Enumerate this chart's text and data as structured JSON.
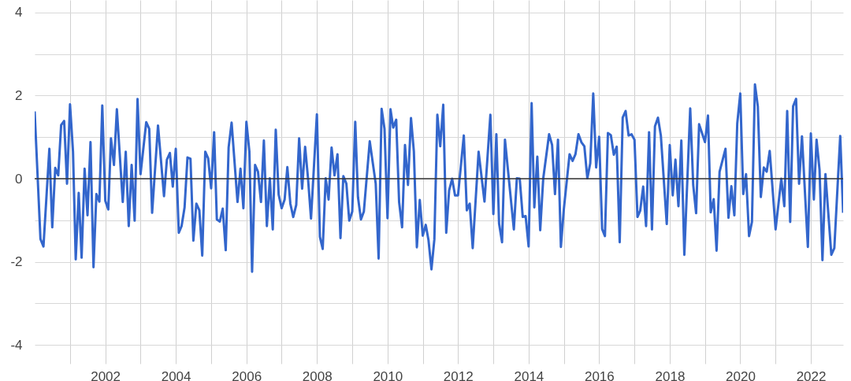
{
  "chart_data": {
    "type": "line",
    "x": [
      "2000-01",
      "2000-03",
      "2000-04",
      "2000-06",
      "2000-07",
      "2000-08",
      "2000-09",
      "2000-10",
      "2000-11",
      "2000-12",
      "2001-01",
      "2001-02",
      "2001-03",
      "2001-04",
      "2001-05",
      "2001-06",
      "2001-07",
      "2001-08",
      "2001-09",
      "2001-10",
      "2001-11",
      "2001-12",
      "2002-01",
      "2002-02",
      "2002-03",
      "2002-04",
      "2002-05",
      "2002-07",
      "2002-08",
      "2002-09",
      "2002-10",
      "2002-11",
      "2002-12",
      "2003-01",
      "2003-03",
      "2003-04",
      "2003-05",
      "2003-07",
      "2003-09",
      "2003-10",
      "2003-11",
      "2003-12",
      "2004-01",
      "2004-02",
      "2004-03",
      "2004-04",
      "2004-05",
      "2004-06",
      "2004-07",
      "2004-08",
      "2004-09",
      "2004-10",
      "2004-11",
      "2004-12",
      "2005-01",
      "2005-02",
      "2005-03",
      "2005-04",
      "2005-05",
      "2005-06",
      "2005-07",
      "2005-08",
      "2005-10",
      "2005-11",
      "2005-12",
      "2006-01",
      "2006-02",
      "2006-03",
      "2006-04",
      "2006-05",
      "2006-06",
      "2006-07",
      "2006-08",
      "2006-09",
      "2006-10",
      "2006-11",
      "2006-12",
      "2007-01",
      "2007-02",
      "2007-03",
      "2007-04",
      "2007-05",
      "2007-06",
      "2007-07",
      "2007-08",
      "2007-09",
      "2007-10",
      "2007-11",
      "2008-01",
      "2008-02",
      "2008-03",
      "2008-04",
      "2008-05",
      "2008-06",
      "2008-07",
      "2008-08",
      "2008-09",
      "2008-10",
      "2008-11",
      "2008-12",
      "2009-01",
      "2009-02",
      "2009-03",
      "2009-04",
      "2009-05",
      "2009-07",
      "2009-09",
      "2009-10",
      "2009-11",
      "2009-12",
      "2010-01",
      "2010-02",
      "2010-03",
      "2010-04",
      "2010-05",
      "2010-06",
      "2010-07",
      "2010-08",
      "2010-09",
      "2010-10",
      "2010-11",
      "2010-12",
      "2011-01",
      "2011-02",
      "2011-03",
      "2011-04",
      "2011-05",
      "2011-06",
      "2011-07",
      "2011-08",
      "2011-09",
      "2011-10",
      "2011-11",
      "2011-12",
      "2012-01",
      "2012-03",
      "2012-04",
      "2012-05",
      "2012-06",
      "2012-08",
      "2012-10",
      "2012-12",
      "2013-01",
      "2013-02",
      "2013-03",
      "2013-04",
      "2013-05",
      "2013-08",
      "2013-09",
      "2013-10",
      "2013-11",
      "2013-12",
      "2014-01",
      "2014-02",
      "2014-03",
      "2014-04",
      "2014-05",
      "2014-06",
      "2014-08",
      "2014-09",
      "2014-10",
      "2014-11",
      "2014-12",
      "2015-01",
      "2015-03",
      "2015-04",
      "2015-05",
      "2015-06",
      "2015-07",
      "2015-08",
      "2015-09",
      "2015-10",
      "2015-11",
      "2015-12",
      "2016-01",
      "2016-02",
      "2016-03",
      "2016-04",
      "2016-05",
      "2016-06",
      "2016-07",
      "2016-08",
      "2016-09",
      "2016-10",
      "2016-11",
      "2016-12",
      "2017-01",
      "2017-02",
      "2017-03",
      "2017-04",
      "2017-05",
      "2017-06",
      "2017-07",
      "2017-08",
      "2017-09",
      "2017-10",
      "2017-12",
      "2018-01",
      "2018-02",
      "2018-03",
      "2018-04",
      "2018-05",
      "2018-06",
      "2018-08",
      "2018-09",
      "2018-10",
      "2018-11",
      "2019-01",
      "2019-02",
      "2019-03",
      "2019-04",
      "2019-05",
      "2019-06",
      "2019-08",
      "2019-09",
      "2019-10",
      "2019-11",
      "2019-12",
      "2020-01",
      "2020-02",
      "2020-03",
      "2020-04",
      "2020-05",
      "2020-06",
      "2020-07",
      "2020-08",
      "2020-09",
      "2020-10",
      "2020-11",
      "2021-01",
      "2021-03",
      "2021-04",
      "2021-05",
      "2021-06",
      "2021-07",
      "2021-08",
      "2021-09",
      "2021-10",
      "2021-12",
      "2022-01",
      "2022-02",
      "2022-03",
      "2022-04",
      "2022-05",
      "2022-06",
      "2022-08",
      "2022-09",
      "2022-11",
      "2022-12"
    ],
    "series": [
      {
        "color": "#3366cc",
        "values": [
          1.62,
          -1.45,
          -1.63,
          0.72,
          -1.17,
          0.26,
          0.08,
          1.29,
          1.39,
          -0.12,
          1.79,
          0.65,
          -1.94,
          -0.34,
          -1.9,
          0.24,
          -0.88,
          0.88,
          -2.13,
          -0.37,
          -0.55,
          1.76,
          -0.53,
          -0.74,
          0.97,
          0.33,
          1.67,
          -0.56,
          0.65,
          -1.14,
          0.33,
          -1.01,
          1.92,
          0.11,
          1.36,
          1.2,
          -0.82,
          1.28,
          -0.42,
          0.46,
          0.62,
          -0.19,
          0.72,
          -1.3,
          -1.14,
          -0.69,
          0.51,
          0.48,
          -1.49,
          -0.6,
          -0.76,
          -1.85,
          0.65,
          0.49,
          -0.23,
          1.12,
          -0.98,
          -1.03,
          -0.72,
          -1.72,
          0.75,
          1.35,
          -0.56,
          0.24,
          -0.71,
          1.37,
          0.65,
          -2.24,
          0.33,
          0.17,
          -0.56,
          0.92,
          -1.14,
          0.01,
          -1.22,
          1.18,
          -0.38,
          -0.71,
          -0.5,
          0.28,
          -0.6,
          -0.92,
          -0.63,
          0.97,
          -0.24,
          0.77,
          0.01,
          -0.96,
          1.55,
          -1.4,
          -1.69,
          0.01,
          -0.5,
          0.75,
          0.08,
          0.59,
          -1.43,
          0.06,
          -0.12,
          -1.01,
          -0.79,
          1.37,
          -0.44,
          -0.98,
          -0.79,
          0.9,
          -0.12,
          -1.92,
          1.68,
          1.2,
          -0.95,
          1.67,
          1.23,
          1.42,
          -0.56,
          -1.17,
          0.81,
          -0.15,
          1.46,
          0.65,
          -1.65,
          -0.51,
          -1.37,
          -1.11,
          -1.47,
          -2.18,
          -1.46,
          1.54,
          0.78,
          1.78,
          -1.3,
          -0.28,
          0,
          -0.4,
          -0.4,
          1.04,
          -0.76,
          -0.6,
          -1.67,
          0.65,
          -0.55,
          1.54,
          -0.85,
          1.07,
          -1.08,
          -1.53,
          0.94,
          -1.22,
          0.01,
          0,
          -0.92,
          -0.9,
          -1.63,
          1.82,
          -0.69,
          0.53,
          -1.24,
          0,
          1.07,
          0.81,
          -0.37,
          0.94,
          -1.64,
          -0.72,
          0.59,
          0.43,
          0.59,
          1.07,
          0.88,
          0.78,
          0.01,
          0.37,
          2.05,
          0.27,
          1.01,
          -1.21,
          -1.38,
          1.1,
          1.05,
          0.58,
          0.77,
          -1.53,
          1.47,
          1.63,
          1.04,
          1.07,
          0.94,
          -0.92,
          -0.77,
          -0.19,
          -1.14,
          1.12,
          -1.22,
          1.26,
          1.47,
          1.04,
          -1.09,
          0.81,
          -0.4,
          0.46,
          -0.66,
          0.92,
          -1.83,
          1.69,
          -0.15,
          -0.83,
          1.31,
          0.88,
          1.52,
          -0.81,
          -0.49,
          -1.73,
          0.17,
          0.72,
          -0.94,
          -0.18,
          -0.88,
          1.33,
          2.05,
          -0.37,
          0.11,
          -1.38,
          -1.04,
          2.27,
          1.74,
          -0.44,
          0.27,
          0.17,
          0.67,
          -1.22,
          0,
          -0.66,
          1.63,
          -1.04,
          1.74,
          1.92,
          -0.12,
          1.02,
          -1.64,
          1.09,
          -0.5,
          0.94,
          0.21,
          -1.96,
          0.11,
          -1.83,
          -1.67,
          1.03,
          -0.82
        ]
      }
    ],
    "xlim": [
      "2000-01",
      "2022-12"
    ],
    "xticks": [
      {
        "value": "2001",
        "label": null
      },
      "2002",
      {
        "value": "2003",
        "label": null
      },
      "2004",
      {
        "value": "2005",
        "label": null
      },
      "2006",
      {
        "value": "2007",
        "label": null
      },
      "2008",
      {
        "value": "2009",
        "label": null
      },
      "2010",
      {
        "value": "2011",
        "label": null
      },
      "2012",
      {
        "value": "2013",
        "label": null
      },
      "2014",
      {
        "value": "2015",
        "label": null
      },
      "2016",
      {
        "value": "2017",
        "label": null
      },
      "2018",
      {
        "value": "2019",
        "label": null
      },
      "2020",
      {
        "value": "2021",
        "label": null
      },
      "2022"
    ],
    "ylim": [
      -4.45,
      4.3
    ],
    "yticks": [
      -4,
      {
        "value": -3,
        "label": null
      },
      -2,
      {
        "value": -1,
        "label": null
      },
      0,
      {
        "value": 1,
        "label": null
      },
      2,
      {
        "value": 3,
        "label": null
      },
      4
    ],
    "ref_lines": [
      {
        "axis": "y",
        "value": 0,
        "color": "#333333"
      }
    ],
    "grid": true,
    "marker": "none",
    "line_style": "solid"
  }
}
